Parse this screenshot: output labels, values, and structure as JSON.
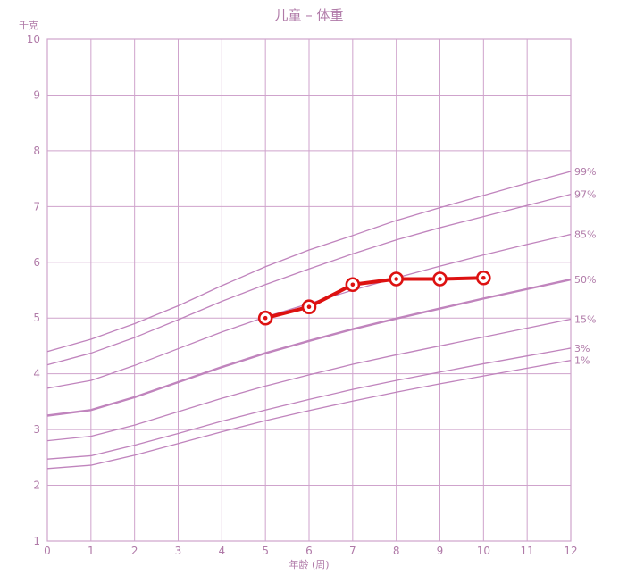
{
  "chart_data": {
    "type": "line",
    "title": "儿童 – 体重",
    "xlabel": "年龄 (周)",
    "ylabel": "千克",
    "xlim": [
      0,
      12
    ],
    "ylim": [
      1,
      10
    ],
    "x_ticks": [
      "0",
      "1",
      "2",
      "3",
      "4",
      "5",
      "6",
      "7",
      "8",
      "9",
      "10",
      "11",
      "12"
    ],
    "y_ticks": [
      "1",
      "2",
      "3",
      "4",
      "5",
      "6",
      "7",
      "8",
      "9",
      "10"
    ],
    "grid": true,
    "colors": {
      "grid": "#cfa3cc",
      "percentile": "#c084bd",
      "median": "#c084bd",
      "child": "#dd1111",
      "text": "#b07aa8"
    },
    "percentiles": [
      {
        "name": "99%",
        "x": [
          0,
          1,
          2,
          3,
          4,
          5,
          6,
          7,
          8,
          9,
          10,
          11,
          12
        ],
        "values": [
          4.4,
          4.62,
          4.9,
          5.22,
          5.58,
          5.92,
          6.22,
          6.48,
          6.75,
          6.98,
          7.2,
          7.42,
          7.63
        ]
      },
      {
        "name": "97%",
        "x": [
          0,
          1,
          2,
          3,
          4,
          5,
          6,
          7,
          8,
          9,
          10,
          11,
          12
        ],
        "values": [
          4.16,
          4.37,
          4.65,
          4.97,
          5.3,
          5.6,
          5.88,
          6.15,
          6.4,
          6.62,
          6.82,
          7.02,
          7.22
        ]
      },
      {
        "name": "85%",
        "x": [
          0,
          1,
          2,
          3,
          4,
          5,
          6,
          7,
          8,
          9,
          10,
          11,
          12
        ],
        "values": [
          3.74,
          3.88,
          4.15,
          4.45,
          4.75,
          5.02,
          5.26,
          5.5,
          5.72,
          5.93,
          6.13,
          6.32,
          6.5
        ]
      },
      {
        "name": "50%",
        "x": [
          0,
          1,
          2,
          3,
          4,
          5,
          6,
          7,
          8,
          9,
          10,
          11,
          12
        ],
        "values": [
          3.25,
          3.35,
          3.58,
          3.85,
          4.12,
          4.37,
          4.59,
          4.8,
          4.99,
          5.17,
          5.35,
          5.52,
          5.69
        ]
      },
      {
        "name": "15%",
        "x": [
          0,
          1,
          2,
          3,
          4,
          5,
          6,
          7,
          8,
          9,
          10,
          11,
          12
        ],
        "values": [
          2.8,
          2.88,
          3.08,
          3.32,
          3.56,
          3.78,
          3.98,
          4.17,
          4.34,
          4.5,
          4.66,
          4.82,
          4.98
        ]
      },
      {
        "name": "3%",
        "x": [
          0,
          1,
          2,
          3,
          4,
          5,
          6,
          7,
          8,
          9,
          10,
          11,
          12
        ],
        "values": [
          2.47,
          2.53,
          2.72,
          2.93,
          3.15,
          3.35,
          3.54,
          3.72,
          3.88,
          4.03,
          4.18,
          4.32,
          4.46
        ]
      },
      {
        "name": "1%",
        "x": [
          0,
          1,
          2,
          3,
          4,
          5,
          6,
          7,
          8,
          9,
          10,
          11,
          12
        ],
        "values": [
          2.3,
          2.36,
          2.54,
          2.75,
          2.96,
          3.16,
          3.34,
          3.51,
          3.67,
          3.82,
          3.96,
          4.1,
          4.24
        ]
      }
    ],
    "series": [
      {
        "x": [
          5,
          6,
          7,
          8,
          9,
          10
        ],
        "values": [
          5.0,
          5.2,
          5.6,
          5.7,
          5.7,
          5.72
        ]
      }
    ]
  }
}
